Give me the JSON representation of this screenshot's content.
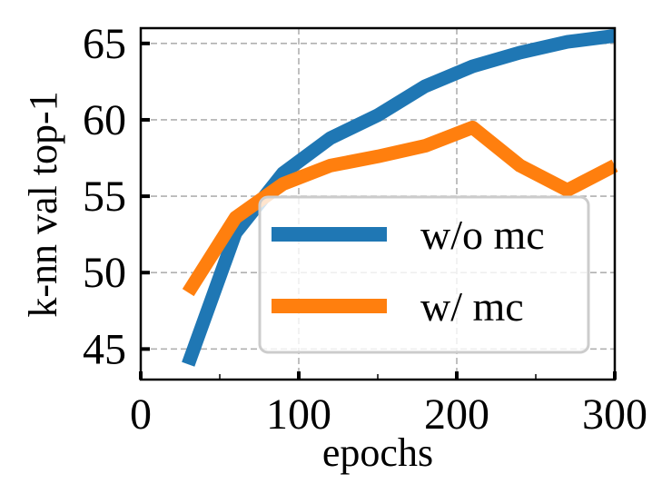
{
  "chart_data": {
    "type": "line",
    "title": "",
    "xlabel": "epochs",
    "ylabel": "k-nn val top-1",
    "xlim": [
      0,
      300
    ],
    "ylim": [
      43,
      66
    ],
    "xticks": [
      0,
      100,
      200,
      300
    ],
    "xtick_labels": [
      "0",
      "100",
      "200",
      "300"
    ],
    "xminor_ticks": [
      50,
      150,
      250
    ],
    "yticks": [
      45,
      50,
      55,
      60,
      65
    ],
    "ytick_labels": [
      "45",
      "50",
      "55",
      "60",
      "65"
    ],
    "grid": true,
    "legend_placement": "lower-right",
    "series": [
      {
        "name": "w/o mc",
        "color": "#1f77b4",
        "x": [
          30,
          60,
          90,
          120,
          150,
          180,
          210,
          240,
          270,
          300
        ],
        "values": [
          44.0,
          52.6,
          56.5,
          58.8,
          60.3,
          62.2,
          63.5,
          64.4,
          65.1,
          65.5
        ]
      },
      {
        "name": "w/ mc",
        "color": "#ff7f0e",
        "x": [
          30,
          60,
          90,
          120,
          150,
          180,
          210,
          240,
          270,
          300
        ],
        "values": [
          48.7,
          53.6,
          55.8,
          57.0,
          57.6,
          58.3,
          59.5,
          57.0,
          55.4,
          57.0
        ]
      }
    ]
  }
}
